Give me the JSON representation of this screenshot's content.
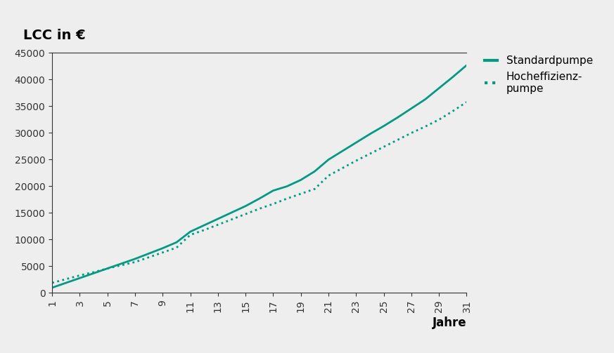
{
  "chart_data": {
    "type": "line",
    "title": "LCC in €",
    "x_label": "Jahre",
    "x": [
      1,
      2,
      3,
      4,
      5,
      6,
      7,
      8,
      9,
      10,
      11,
      12,
      13,
      14,
      15,
      16,
      17,
      18,
      19,
      20,
      21,
      22,
      23,
      24,
      25,
      26,
      27,
      28,
      29,
      30,
      31
    ],
    "series": [
      {
        "name": "Standardpumpe",
        "color": "#009c82",
        "line_style": "solid",
        "values": [
          1000,
          1900,
          2800,
          3700,
          4600,
          5500,
          6400,
          7400,
          8400,
          9500,
          11500,
          12700,
          13900,
          15100,
          16300,
          17700,
          19200,
          20000,
          21200,
          22800,
          25000,
          26600,
          28200,
          29800,
          31300,
          32900,
          34600,
          36300,
          38400,
          40500,
          42700
        ]
      },
      {
        "name": "Hocheffizienz-\npumpe",
        "color": "#009c82",
        "line_style": "dotted",
        "values": [
          1900,
          2600,
          3300,
          3900,
          4600,
          5200,
          5800,
          6700,
          7600,
          8500,
          10900,
          11800,
          12800,
          13800,
          14800,
          15800,
          16700,
          17700,
          18600,
          19500,
          22000,
          23400,
          24800,
          26100,
          27400,
          28700,
          30000,
          31200,
          32500,
          34100,
          35800
        ]
      }
    ],
    "xlim": [
      1,
      31
    ],
    "xticks": [
      1,
      3,
      5,
      7,
      9,
      11,
      13,
      15,
      17,
      19,
      21,
      23,
      25,
      27,
      29,
      31
    ],
    "ylim": [
      0,
      45000
    ],
    "yticks": [
      0,
      5000,
      10000,
      15000,
      20000,
      25000,
      30000,
      35000,
      40000,
      45000
    ],
    "grid": false,
    "legend": "upper left"
  }
}
